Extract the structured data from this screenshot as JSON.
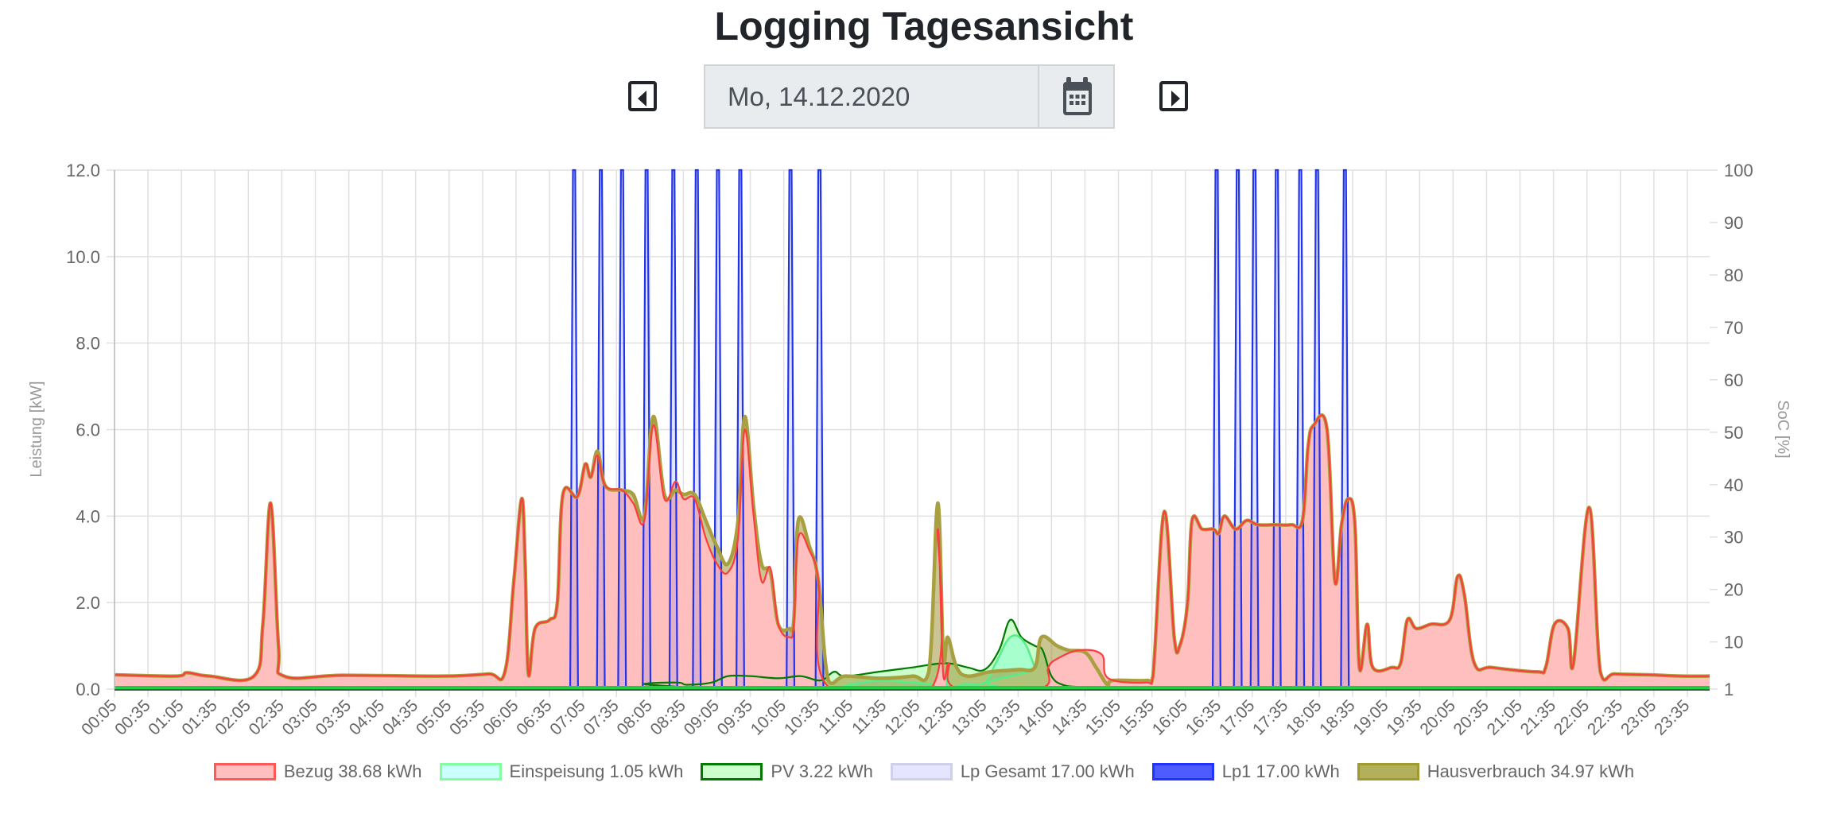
{
  "header": {
    "title": "Logging Tagesansicht"
  },
  "date_picker": {
    "value": "Mo, 14.12.2020",
    "prev_icon": "caret-left-square-icon",
    "next_icon": "caret-right-square-icon",
    "calendar_icon": "calendar-icon"
  },
  "legend": [
    {
      "label": "Bezug 38.68 kWh",
      "fill": "#ffbfbf",
      "border": "#ff5a5a"
    },
    {
      "label": "Einspeisung 1.05 kWh",
      "fill": "#ccffff",
      "border": "#80ffa0"
    },
    {
      "label": "PV 3.22 kWh",
      "fill": "#ccffcc",
      "border": "#007a00"
    },
    {
      "label": "Lp Gesamt 17.00 kWh",
      "fill": "#e5e5ff",
      "border": "#d0d0ea"
    },
    {
      "label": "Lp1 17.00 kWh",
      "fill": "#4c5cff",
      "border": "#2233ff"
    },
    {
      "label": "Hausverbrauch 34.97 kWh",
      "fill": "#b3b05c",
      "border": "#a09a30"
    }
  ],
  "chart_data": {
    "type": "line",
    "ylabel": "Leistung [kW]",
    "y2label": "SoC [%]",
    "ylim": [
      0,
      12
    ],
    "y2lim": [
      1,
      100
    ],
    "yticks": [
      "0.0",
      "2.0",
      "4.0",
      "6.0",
      "8.0",
      "10.0",
      "12.0"
    ],
    "y2ticks": [
      "1",
      "10",
      "20",
      "30",
      "40",
      "50",
      "60",
      "70",
      "80",
      "90",
      "100"
    ],
    "xlim": [
      "00:05",
      "23:55"
    ],
    "xticks": [
      "00:05",
      "00:35",
      "01:05",
      "01:35",
      "02:05",
      "02:35",
      "03:05",
      "03:35",
      "04:05",
      "04:35",
      "05:05",
      "05:35",
      "06:05",
      "06:35",
      "07:05",
      "07:35",
      "08:05",
      "08:35",
      "09:05",
      "09:35",
      "10:05",
      "10:35",
      "11:05",
      "11:35",
      "12:05",
      "12:35",
      "13:05",
      "13:35",
      "14:05",
      "14:35",
      "15:05",
      "15:35",
      "16:05",
      "16:35",
      "17:05",
      "17:35",
      "18:05",
      "18:35",
      "19:05",
      "19:35",
      "20:05",
      "20:35",
      "21:05",
      "21:35",
      "22:05",
      "22:35",
      "23:05",
      "23:35"
    ],
    "grid": true,
    "legend_position": "bottom",
    "series": [
      {
        "name": "Bezug",
        "color": "#ff3b3b",
        "fill": "#ffbfbf",
        "points": [
          [
            "00:05",
            0.33
          ],
          [
            "01:00",
            0.3
          ],
          [
            "01:10",
            0.38
          ],
          [
            "01:30",
            0.3
          ],
          [
            "02:10",
            0.3
          ],
          [
            "02:18",
            1.5
          ],
          [
            "02:25",
            4.3
          ],
          [
            "02:32",
            1.0
          ],
          [
            "02:37",
            0.3
          ],
          [
            "03:30",
            0.32
          ],
          [
            "05:00",
            0.3
          ],
          [
            "05:40",
            0.35
          ],
          [
            "05:55",
            0.4
          ],
          [
            "06:03",
            2.5
          ],
          [
            "06:10",
            4.4
          ],
          [
            "06:13",
            3.0
          ],
          [
            "06:16",
            0.35
          ],
          [
            "06:22",
            1.4
          ],
          [
            "06:35",
            1.6
          ],
          [
            "06:42",
            2.0
          ],
          [
            "06:47",
            4.5
          ],
          [
            "07:00",
            4.45
          ],
          [
            "07:07",
            5.2
          ],
          [
            "07:12",
            4.9
          ],
          [
            "07:18",
            5.4
          ],
          [
            "07:25",
            4.7
          ],
          [
            "07:40",
            4.6
          ],
          [
            "07:50",
            4.3
          ],
          [
            "08:00",
            3.9
          ],
          [
            "08:08",
            6.1
          ],
          [
            "08:18",
            4.4
          ],
          [
            "08:28",
            4.8
          ],
          [
            "08:35",
            4.4
          ],
          [
            "08:45",
            4.4
          ],
          [
            "08:55",
            3.5
          ],
          [
            "09:05",
            2.9
          ],
          [
            "09:15",
            2.7
          ],
          [
            "09:24",
            3.5
          ],
          [
            "09:30",
            6.0
          ],
          [
            "09:38",
            4.0
          ],
          [
            "09:45",
            2.5
          ],
          [
            "09:53",
            2.8
          ],
          [
            "10:00",
            1.5
          ],
          [
            "10:10",
            1.2
          ],
          [
            "10:14",
            1.5
          ],
          [
            "10:18",
            3.5
          ],
          [
            "10:28",
            3.2
          ],
          [
            "10:36",
            2.5
          ],
          [
            "10:45",
            0.05
          ],
          [
            "12:18",
            0.05
          ],
          [
            "12:23",
            3.7
          ],
          [
            "12:28",
            0.3
          ],
          [
            "12:33",
            0.6
          ],
          [
            "12:40",
            0.02
          ],
          [
            "13:55",
            0.02
          ],
          [
            "14:02",
            0.5
          ],
          [
            "14:10",
            0.7
          ],
          [
            "14:30",
            0.9
          ],
          [
            "14:50",
            0.8
          ],
          [
            "14:56",
            0.25
          ],
          [
            "15:30",
            0.15
          ],
          [
            "15:36",
            0.3
          ],
          [
            "15:46",
            4.1
          ],
          [
            "15:55",
            1.2
          ],
          [
            "16:00",
            1.0
          ],
          [
            "16:07",
            2.0
          ],
          [
            "16:11",
            3.9
          ],
          [
            "16:20",
            3.7
          ],
          [
            "16:30",
            3.7
          ],
          [
            "16:35",
            3.6
          ],
          [
            "16:40",
            4.0
          ],
          [
            "16:50",
            3.7
          ],
          [
            "17:00",
            3.9
          ],
          [
            "17:10",
            3.8
          ],
          [
            "17:25",
            3.8
          ],
          [
            "17:40",
            3.8
          ],
          [
            "17:50",
            3.9
          ],
          [
            "17:55",
            5.6
          ],
          [
            "18:00",
            6.1
          ],
          [
            "18:12",
            6.0
          ],
          [
            "18:19",
            2.5
          ],
          [
            "18:25",
            3.8
          ],
          [
            "18:31",
            4.4
          ],
          [
            "18:37",
            3.8
          ],
          [
            "18:41",
            0.5
          ],
          [
            "18:48",
            1.5
          ],
          [
            "18:53",
            0.5
          ],
          [
            "19:10",
            0.5
          ],
          [
            "19:18",
            0.6
          ],
          [
            "19:24",
            1.6
          ],
          [
            "19:32",
            1.4
          ],
          [
            "19:45",
            1.5
          ],
          [
            "20:02",
            1.6
          ],
          [
            "20:09",
            2.6
          ],
          [
            "20:15",
            2.2
          ],
          [
            "20:24",
            0.6
          ],
          [
            "20:40",
            0.5
          ],
          [
            "21:20",
            0.4
          ],
          [
            "21:28",
            0.5
          ],
          [
            "21:36",
            1.5
          ],
          [
            "21:48",
            1.4
          ],
          [
            "21:53",
            0.6
          ],
          [
            "22:07",
            4.2
          ],
          [
            "22:17",
            0.4
          ],
          [
            "22:30",
            0.35
          ],
          [
            "23:00",
            0.33
          ],
          [
            "23:30",
            0.3
          ],
          [
            "23:55",
            0.3
          ]
        ]
      },
      {
        "name": "Einspeisung",
        "color": "#55ee88",
        "fill": "#a6ffcc",
        "points": [
          [
            "00:05",
            0
          ],
          [
            "10:45",
            0
          ],
          [
            "11:00",
            0.08
          ],
          [
            "11:30",
            0.2
          ],
          [
            "12:00",
            0.15
          ],
          [
            "12:18",
            0.1
          ],
          [
            "12:22",
            0
          ],
          [
            "12:30",
            0
          ],
          [
            "12:32",
            0.3
          ],
          [
            "12:35",
            0
          ],
          [
            "12:45",
            0.1
          ],
          [
            "13:05",
            0.15
          ],
          [
            "13:15",
            0.6
          ],
          [
            "13:28",
            1.2
          ],
          [
            "13:40",
            1.1
          ],
          [
            "13:50",
            0.5
          ],
          [
            "13:57",
            0
          ],
          [
            "23:55",
            0
          ]
        ]
      },
      {
        "name": "PV",
        "color": "#007a00",
        "fill": "#ccffcc",
        "points": [
          [
            "00:05",
            0
          ],
          [
            "07:55",
            0
          ],
          [
            "08:00",
            0.12
          ],
          [
            "08:30",
            0.15
          ],
          [
            "08:38",
            0.1
          ],
          [
            "09:00",
            0.15
          ],
          [
            "09:15",
            0.3
          ],
          [
            "09:35",
            0.3
          ],
          [
            "10:00",
            0.25
          ],
          [
            "10:20",
            0.3
          ],
          [
            "10:38",
            0.2
          ],
          [
            "10:50",
            0.4
          ],
          [
            "11:00",
            0.3
          ],
          [
            "11:30",
            0.4
          ],
          [
            "12:00",
            0.5
          ],
          [
            "12:30",
            0.6
          ],
          [
            "12:50",
            0.5
          ],
          [
            "13:05",
            0.45
          ],
          [
            "13:18",
            0.9
          ],
          [
            "13:28",
            1.6
          ],
          [
            "13:38",
            1.2
          ],
          [
            "13:50",
            1.0
          ],
          [
            "13:57",
            0.9
          ],
          [
            "14:05",
            0.3
          ],
          [
            "14:15",
            0.1
          ],
          [
            "14:30",
            0.05
          ],
          [
            "15:00",
            0.03
          ],
          [
            "15:25",
            0
          ],
          [
            "23:55",
            0
          ]
        ]
      },
      {
        "name": "Hausverbrauch",
        "color": "#a8a040",
        "fill": "rgba(150,140,40,0.5)",
        "points": [
          [
            "00:05",
            0.33
          ],
          [
            "01:00",
            0.3
          ],
          [
            "01:10",
            0.38
          ],
          [
            "01:30",
            0.3
          ],
          [
            "02:10",
            0.3
          ],
          [
            "02:18",
            1.5
          ],
          [
            "02:25",
            4.3
          ],
          [
            "02:32",
            1.0
          ],
          [
            "02:37",
            0.3
          ],
          [
            "03:30",
            0.32
          ],
          [
            "05:00",
            0.3
          ],
          [
            "05:40",
            0.35
          ],
          [
            "05:55",
            0.4
          ],
          [
            "06:03",
            2.5
          ],
          [
            "06:10",
            4.4
          ],
          [
            "06:13",
            3.0
          ],
          [
            "06:16",
            0.35
          ],
          [
            "06:22",
            1.4
          ],
          [
            "06:35",
            1.6
          ],
          [
            "06:42",
            2.0
          ],
          [
            "06:47",
            4.5
          ],
          [
            "07:00",
            4.45
          ],
          [
            "07:07",
            5.2
          ],
          [
            "07:12",
            4.9
          ],
          [
            "07:18",
            5.5
          ],
          [
            "07:25",
            4.7
          ],
          [
            "07:40",
            4.6
          ],
          [
            "07:50",
            4.5
          ],
          [
            "08:00",
            4.0
          ],
          [
            "08:08",
            6.3
          ],
          [
            "08:18",
            4.5
          ],
          [
            "08:28",
            4.6
          ],
          [
            "08:35",
            4.5
          ],
          [
            "08:45",
            4.5
          ],
          [
            "08:55",
            3.9
          ],
          [
            "09:05",
            3.3
          ],
          [
            "09:15",
            2.9
          ],
          [
            "09:24",
            3.9
          ],
          [
            "09:30",
            6.3
          ],
          [
            "09:38",
            4.2
          ],
          [
            "09:45",
            2.9
          ],
          [
            "09:53",
            2.7
          ],
          [
            "10:00",
            1.5
          ],
          [
            "10:10",
            1.4
          ],
          [
            "10:14",
            1.6
          ],
          [
            "10:18",
            3.9
          ],
          [
            "10:28",
            3.3
          ],
          [
            "10:36",
            2.5
          ],
          [
            "10:45",
            0.2
          ],
          [
            "11:00",
            0.3
          ],
          [
            "11:30",
            0.25
          ],
          [
            "12:00",
            0.3
          ],
          [
            "12:15",
            0.4
          ],
          [
            "12:23",
            4.3
          ],
          [
            "12:28",
            0.8
          ],
          [
            "12:32",
            1.2
          ],
          [
            "12:40",
            0.5
          ],
          [
            "12:50",
            0.3
          ],
          [
            "13:10",
            0.4
          ],
          [
            "13:35",
            0.45
          ],
          [
            "13:50",
            0.5
          ],
          [
            "13:56",
            1.2
          ],
          [
            "14:10",
            1.0
          ],
          [
            "14:20",
            0.9
          ],
          [
            "14:35",
            0.85
          ],
          [
            "14:45",
            0.5
          ],
          [
            "14:55",
            0.1
          ],
          [
            "15:00",
            0.2
          ],
          [
            "15:30",
            0.2
          ],
          [
            "15:36",
            0.3
          ],
          [
            "15:46",
            4.1
          ],
          [
            "15:55",
            1.2
          ],
          [
            "16:00",
            1.0
          ],
          [
            "16:07",
            2.0
          ],
          [
            "16:11",
            3.9
          ],
          [
            "16:20",
            3.7
          ],
          [
            "16:30",
            3.7
          ],
          [
            "16:35",
            3.6
          ],
          [
            "16:40",
            4.0
          ],
          [
            "16:50",
            3.7
          ],
          [
            "17:00",
            3.9
          ],
          [
            "17:10",
            3.8
          ],
          [
            "17:25",
            3.8
          ],
          [
            "17:40",
            3.8
          ],
          [
            "17:50",
            3.9
          ],
          [
            "17:55",
            5.6
          ],
          [
            "18:00",
            6.1
          ],
          [
            "18:12",
            6.0
          ],
          [
            "18:19",
            2.5
          ],
          [
            "18:25",
            3.8
          ],
          [
            "18:31",
            4.4
          ],
          [
            "18:37",
            3.8
          ],
          [
            "18:41",
            0.5
          ],
          [
            "18:48",
            1.5
          ],
          [
            "18:53",
            0.5
          ],
          [
            "19:10",
            0.5
          ],
          [
            "19:18",
            0.6
          ],
          [
            "19:24",
            1.6
          ],
          [
            "19:32",
            1.4
          ],
          [
            "19:45",
            1.5
          ],
          [
            "20:02",
            1.6
          ],
          [
            "20:09",
            2.6
          ],
          [
            "20:15",
            2.2
          ],
          [
            "20:24",
            0.6
          ],
          [
            "20:40",
            0.5
          ],
          [
            "21:20",
            0.4
          ],
          [
            "21:28",
            0.5
          ],
          [
            "21:36",
            1.5
          ],
          [
            "21:48",
            1.4
          ],
          [
            "21:53",
            0.6
          ],
          [
            "22:07",
            4.2
          ],
          [
            "22:17",
            0.4
          ],
          [
            "22:30",
            0.35
          ],
          [
            "23:00",
            0.33
          ],
          [
            "23:30",
            0.3
          ],
          [
            "23:55",
            0.3
          ]
        ]
      },
      {
        "name": "Lp1",
        "color": "#2233ee",
        "fill": "rgba(60,80,255,0.15)",
        "pulse_kw": 12,
        "pulse_times": [
          "06:57",
          "07:21",
          "07:40",
          "08:02",
          "08:26",
          "08:47",
          "09:06",
          "09:26",
          "10:11",
          "10:37",
          "16:33",
          "16:52",
          "17:07",
          "17:27",
          "17:48",
          "18:03",
          "18:28"
        ]
      }
    ]
  }
}
